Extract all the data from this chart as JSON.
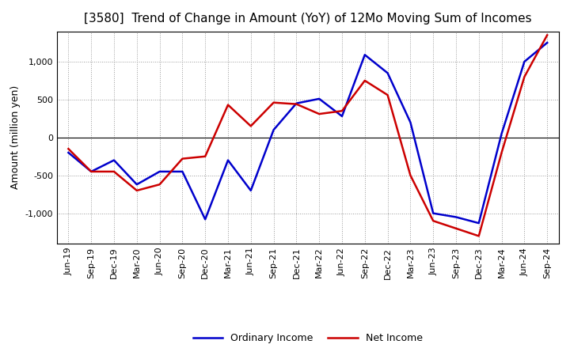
{
  "title": "[3580]  Trend of Change in Amount (YoY) of 12Mo Moving Sum of Incomes",
  "ylabel": "Amount (million yen)",
  "x_labels": [
    "Jun-19",
    "Sep-19",
    "Dec-19",
    "Mar-20",
    "Jun-20",
    "Sep-20",
    "Dec-20",
    "Mar-21",
    "Jun-21",
    "Sep-21",
    "Dec-21",
    "Mar-22",
    "Jun-22",
    "Sep-22",
    "Dec-22",
    "Mar-23",
    "Jun-23",
    "Sep-23",
    "Dec-23",
    "Mar-24",
    "Jun-24",
    "Sep-24"
  ],
  "ordinary_income": [
    -200,
    -450,
    -300,
    -620,
    -450,
    -450,
    -1080,
    -300,
    -700,
    100,
    450,
    510,
    280,
    1090,
    850,
    200,
    -1000,
    -1050,
    -1130,
    50,
    1000,
    1250
  ],
  "net_income": [
    -150,
    -450,
    -450,
    -700,
    -620,
    -280,
    -250,
    430,
    150,
    460,
    440,
    310,
    350,
    750,
    560,
    -500,
    -1100,
    -1200,
    -1300,
    -200,
    800,
    1350
  ],
  "ordinary_color": "#0000cc",
  "net_color": "#cc0000",
  "ylim": [
    -1400,
    1400
  ],
  "yticks": [
    -1000,
    -500,
    0,
    500,
    1000
  ],
  "background_color": "#ffffff",
  "grid_color": "#999999",
  "line_width": 1.8,
  "title_fontsize": 11,
  "ylabel_fontsize": 9,
  "tick_fontsize": 8,
  "legend_fontsize": 9
}
